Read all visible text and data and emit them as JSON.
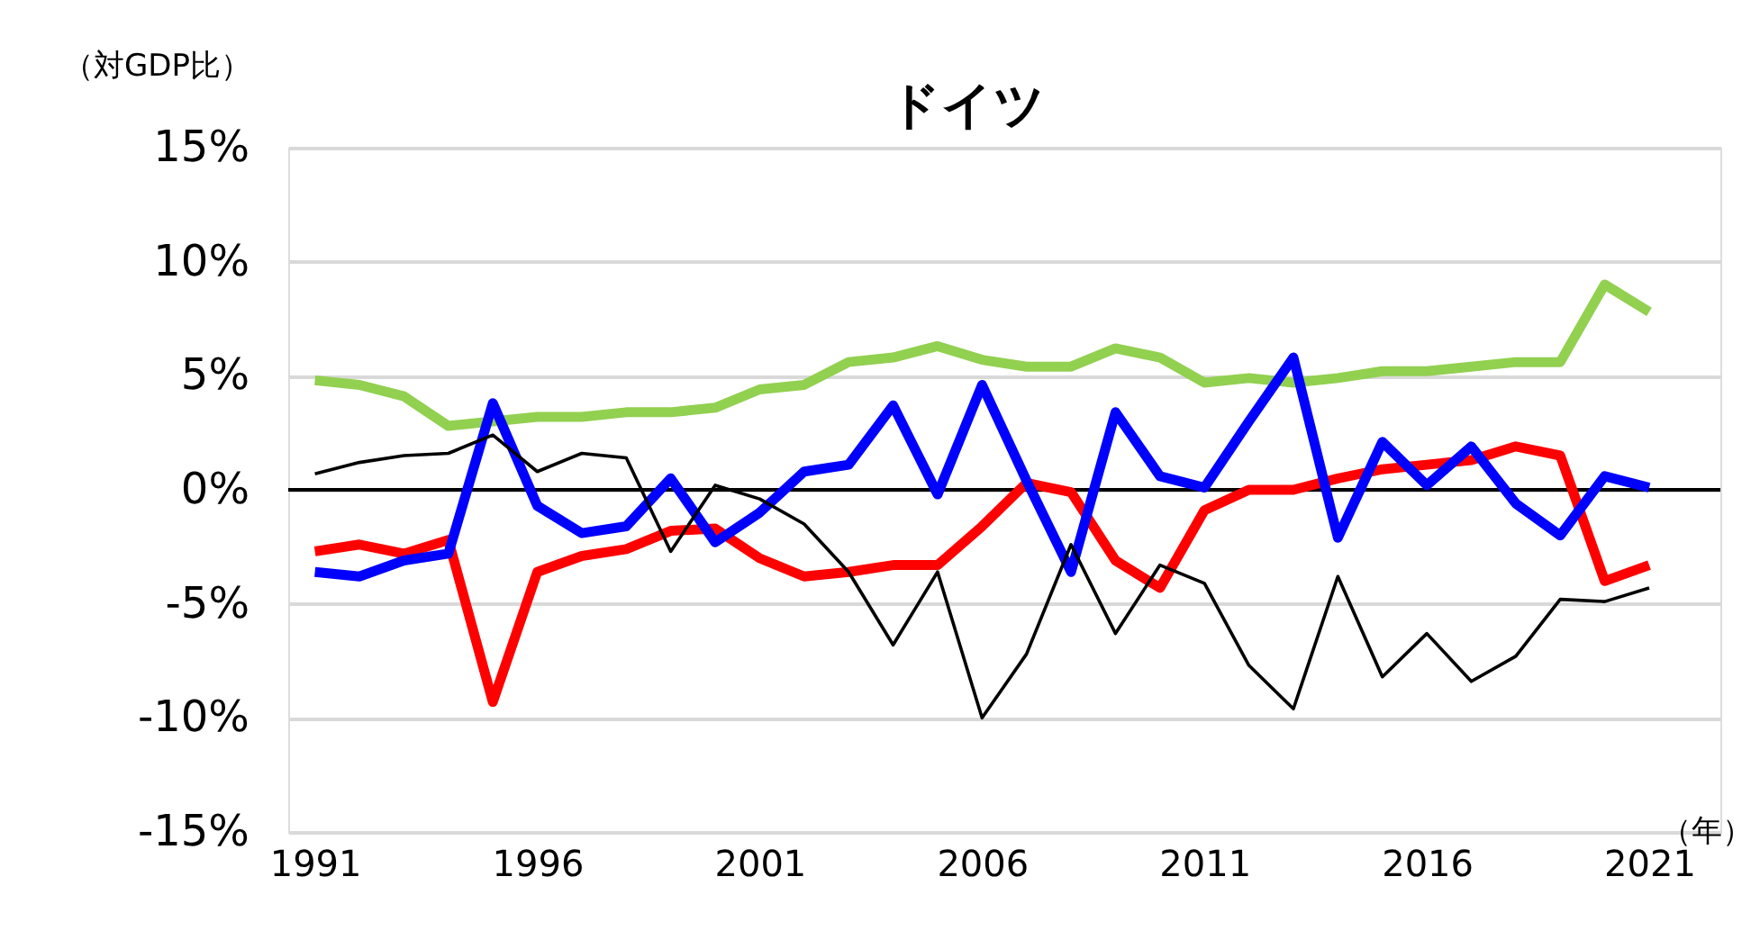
{
  "chart_data": {
    "type": "line",
    "title": "ドイツ",
    "ylabel": "（対GDP比）",
    "xlabel": "（年）",
    "x": [
      1991,
      1992,
      1993,
      1994,
      1995,
      1996,
      1997,
      1998,
      1999,
      2000,
      2001,
      2002,
      2003,
      2004,
      2005,
      2006,
      2007,
      2008,
      2009,
      2010,
      2011,
      2012,
      2013,
      2014,
      2015,
      2016,
      2017,
      2018,
      2019,
      2020,
      2021
    ],
    "series": [
      {
        "color": "#92d050",
        "values": [
          4.8,
          4.6,
          4.1,
          2.8,
          3.0,
          3.2,
          3.2,
          3.4,
          3.4,
          3.6,
          4.4,
          4.6,
          5.6,
          5.8,
          6.3,
          5.7,
          5.4,
          5.4,
          6.2,
          5.8,
          4.7,
          4.9,
          4.7,
          4.9,
          5.2,
          5.2,
          5.4,
          5.6,
          5.6,
          9.0,
          7.8
        ]
      },
      {
        "color": "#ff0000",
        "values": [
          -2.7,
          -2.4,
          -2.8,
          -2.2,
          -9.3,
          -3.6,
          -2.9,
          -2.6,
          -1.8,
          -1.7,
          -3.0,
          -3.8,
          -3.6,
          -3.3,
          -3.3,
          -1.6,
          0.3,
          -0.1,
          -3.1,
          -4.3,
          -0.9,
          0.0,
          0.0,
          0.5,
          0.9,
          1.1,
          1.3,
          1.9,
          1.5,
          -4.0,
          -3.3
        ]
      },
      {
        "color": "#0000ff",
        "values": [
          -3.6,
          -3.8,
          -3.1,
          -2.8,
          3.8,
          -0.7,
          -1.9,
          -1.6,
          0.5,
          -2.3,
          -1.0,
          0.8,
          1.1,
          3.7,
          -0.2,
          4.6,
          0.4,
          -3.6,
          3.4,
          0.6,
          0.1,
          3.0,
          5.8,
          -2.1,
          2.1,
          0.2,
          1.9,
          -0.6,
          -2.0,
          0.6,
          0.1
        ]
      },
      {
        "color": "#000000",
        "values": [
          0.7,
          1.2,
          1.5,
          1.6,
          2.4,
          0.8,
          1.6,
          1.4,
          -2.7,
          0.2,
          -0.4,
          -1.5,
          -3.6,
          -6.8,
          -3.6,
          -10.0,
          -7.2,
          -2.4,
          -6.3,
          -3.3,
          -4.1,
          -7.7,
          -9.6,
          -3.8,
          -8.2,
          -6.3,
          -8.4,
          -7.3,
          -4.8,
          -4.9,
          -4.3
        ]
      }
    ],
    "xlim": [
      1990.4,
      2022.6
    ],
    "xticks": [
      1991,
      1996,
      2001,
      2006,
      2011,
      2016,
      2021
    ],
    "ylim": [
      -15,
      15
    ],
    "yticks": [
      {
        "value": -15,
        "label": "-15%"
      },
      {
        "value": -10,
        "label": "-10%"
      },
      {
        "value": -5,
        "label": "-5%"
      },
      {
        "value": 0,
        "label": "0%"
      },
      {
        "value": 5,
        "label": "5%"
      },
      {
        "value": 10,
        "label": "10%"
      },
      {
        "value": 15,
        "label": "15%"
      }
    ],
    "ref_lines": [
      {
        "axis": "y",
        "value": 0,
        "color": "#000000"
      }
    ],
    "grid": "y",
    "marker": "none",
    "line_style": "solid"
  }
}
